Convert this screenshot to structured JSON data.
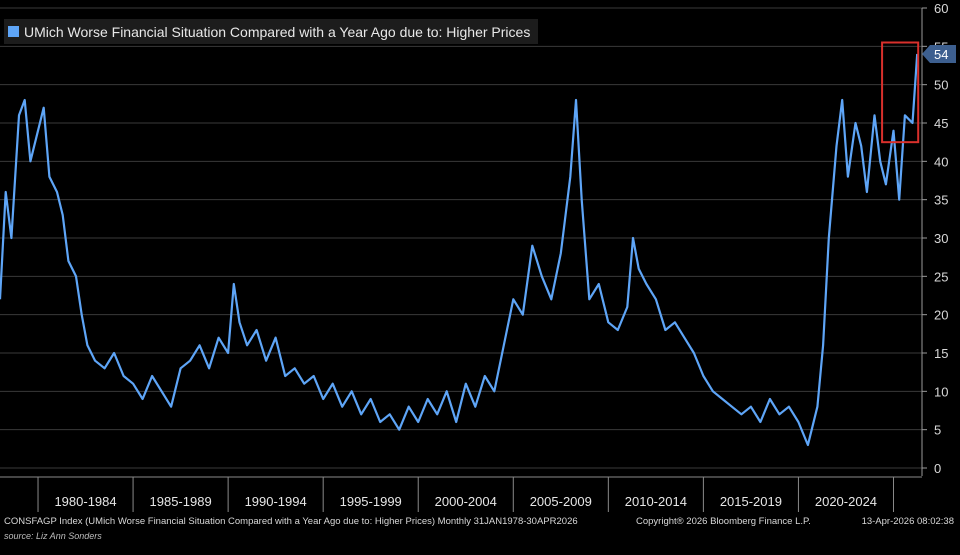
{
  "chart_data": {
    "type": "line",
    "title": "UMich Worse Financial Situation Compared with a Year Ago due to: Higher Prices",
    "series": [
      {
        "name": "UMich Worse Financial Situation Compared with a Year Ago due to: Higher Prices",
        "x": [
          1978.0,
          1978.3,
          1978.6,
          1979.0,
          1979.3,
          1979.6,
          1980.0,
          1980.3,
          1980.6,
          1981.0,
          1981.3,
          1981.6,
          1982.0,
          1982.3,
          1982.6,
          1983.0,
          1983.5,
          1984.0,
          1984.5,
          1985.0,
          1985.5,
          1986.0,
          1986.5,
          1987.0,
          1987.5,
          1988.0,
          1988.5,
          1989.0,
          1989.5,
          1990.0,
          1990.3,
          1990.6,
          1991.0,
          1991.5,
          1992.0,
          1992.5,
          1993.0,
          1993.5,
          1994.0,
          1994.5,
          1995.0,
          1995.5,
          1996.0,
          1996.5,
          1997.0,
          1997.5,
          1998.0,
          1998.5,
          1999.0,
          1999.5,
          2000.0,
          2000.5,
          2001.0,
          2001.5,
          2002.0,
          2002.5,
          2003.0,
          2003.5,
          2004.0,
          2004.5,
          2005.0,
          2005.5,
          2006.0,
          2006.5,
          2007.0,
          2007.5,
          2008.0,
          2008.3,
          2008.6,
          2009.0,
          2009.5,
          2010.0,
          2010.5,
          2011.0,
          2011.3,
          2011.6,
          2012.0,
          2012.5,
          2013.0,
          2013.5,
          2014.0,
          2014.5,
          2015.0,
          2015.5,
          2016.0,
          2016.5,
          2017.0,
          2017.5,
          2018.0,
          2018.5,
          2019.0,
          2019.5,
          2020.0,
          2020.5,
          2021.0,
          2021.3,
          2021.6,
          2022.0,
          2022.3,
          2022.6,
          2023.0,
          2023.3,
          2023.6,
          2024.0,
          2024.3,
          2024.6,
          2025.0,
          2025.3,
          2025.6,
          2026.0,
          2026.25
        ],
        "values": [
          22,
          36,
          30,
          46,
          48,
          40,
          44,
          47,
          38,
          36,
          33,
          27,
          25,
          20,
          16,
          14,
          13,
          15,
          12,
          11,
          9,
          12,
          10,
          8,
          13,
          14,
          16,
          13,
          17,
          15,
          24,
          19,
          16,
          18,
          14,
          17,
          12,
          13,
          11,
          12,
          9,
          11,
          8,
          10,
          7,
          9,
          6,
          7,
          5,
          8,
          6,
          9,
          7,
          10,
          6,
          11,
          8,
          12,
          10,
          16,
          22,
          20,
          29,
          25,
          22,
          28,
          38,
          48,
          35,
          22,
          24,
          19,
          18,
          21,
          30,
          26,
          24,
          22,
          18,
          19,
          17,
          15,
          12,
          10,
          9,
          8,
          7,
          8,
          6,
          9,
          7,
          8,
          6,
          3,
          8,
          16,
          30,
          42,
          48,
          38,
          45,
          42,
          36,
          46,
          40,
          37,
          44,
          35,
          46,
          45,
          54
        ],
        "color": "#5ea5f7"
      }
    ],
    "xlim": [
      1978.0,
      2026.5
    ],
    "ylim": [
      0,
      60
    ],
    "x_tick_labels": [
      "1980-1984",
      "1985-1989",
      "1990-1994",
      "1995-1999",
      "2000-2004",
      "2005-2009",
      "2010-2014",
      "2015-2019",
      "2020-2024"
    ],
    "y_ticks": [
      0,
      5,
      10,
      15,
      20,
      25,
      30,
      35,
      40,
      45,
      50,
      55,
      60
    ],
    "last_value_label": "54",
    "highlight_box": {
      "x_from": 2024.4,
      "x_to": 2026.3,
      "y_from": 42.5,
      "y_to": 55.5,
      "color": "#d9302c"
    },
    "grid": true,
    "xlabel": "",
    "ylabel": ""
  },
  "legend": {
    "label": "UMich Worse Financial Situation Compared with a Year Ago due to: Higher Prices",
    "color": "#5ea5f7"
  },
  "footer": {
    "description": "CONSFAGP Index (UMich Worse Financial Situation Compared with a Year Ago due to: Higher Prices) Monthly 31JAN1978-30APR2026",
    "copyright": "Copyright® 2026 Bloomberg Finance L.P.",
    "timestamp": "13-Apr-2026 08:02:38",
    "source": "source: Liz Ann Sonders"
  }
}
